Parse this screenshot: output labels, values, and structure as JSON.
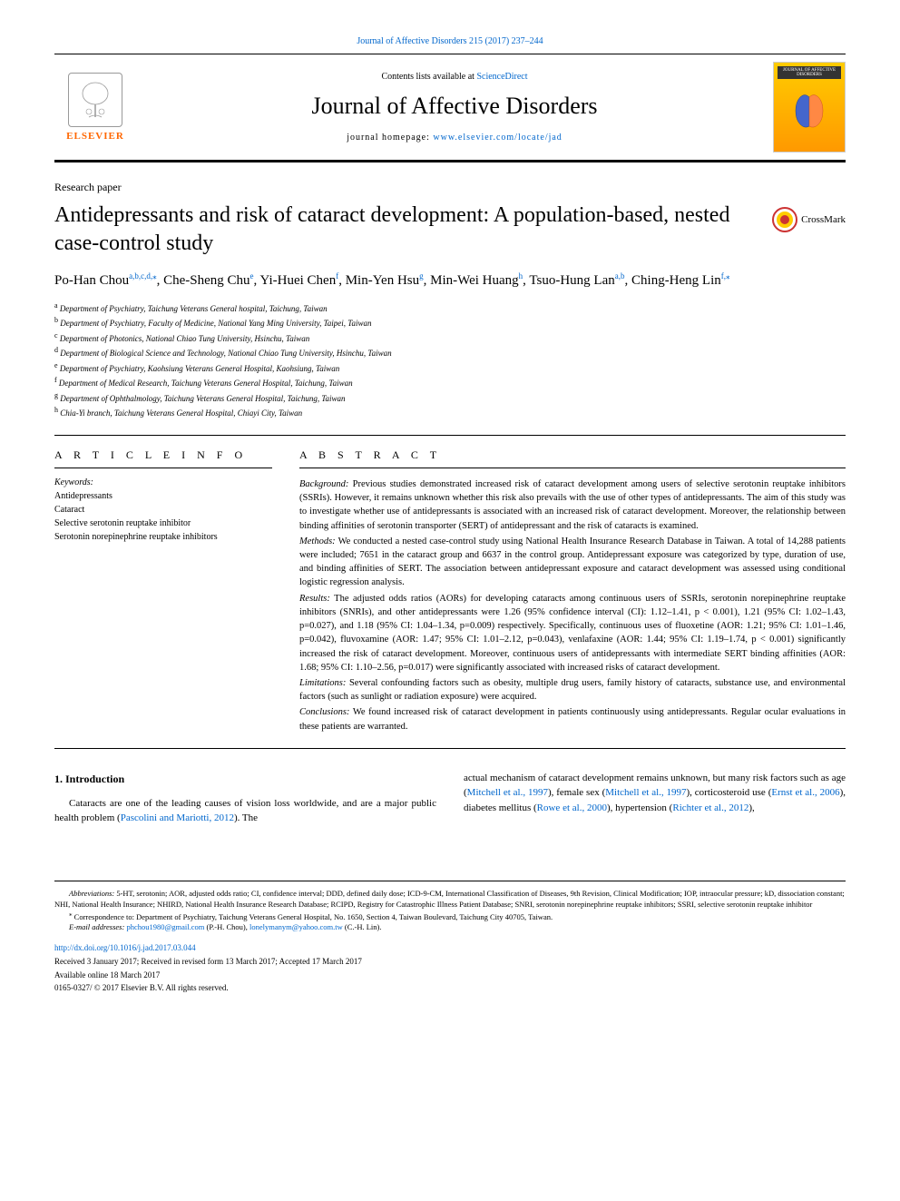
{
  "top_citation": "Journal of Affective Disorders 215 (2017) 237–244",
  "header": {
    "contents_prefix": "Contents lists available at ",
    "contents_link": "ScienceDirect",
    "journal_title": "Journal of Affective Disorders",
    "homepage_prefix": "journal homepage: ",
    "homepage_link": "www.elsevier.com/locate/jad",
    "elsevier_label": "ELSEVIER",
    "cover_label": "JOURNAL OF AFFECTIVE DISORDERS"
  },
  "article_type": "Research paper",
  "title": "Antidepressants and risk of cataract development: A population-based, nested case-control study",
  "crossmark_label": "CrossMark",
  "authors_html": "Po-Han Chou",
  "authors": [
    {
      "name": "Po-Han Chou",
      "sup": "a,b,c,d,⁎"
    },
    {
      "name": "Che-Sheng Chu",
      "sup": "e"
    },
    {
      "name": "Yi-Huei Chen",
      "sup": "f"
    },
    {
      "name": "Min-Yen Hsu",
      "sup": "g"
    },
    {
      "name": "Min-Wei Huang",
      "sup": "h"
    },
    {
      "name": "Tsuo-Hung Lan",
      "sup": "a,b"
    },
    {
      "name": "Ching-Heng Lin",
      "sup": "f,⁎"
    }
  ],
  "affiliations": [
    {
      "sup": "a",
      "text": "Department of Psychiatry, Taichung Veterans General hospital, Taichung, Taiwan"
    },
    {
      "sup": "b",
      "text": "Department of Psychiatry, Faculty of Medicine, National Yang Ming University, Taipei, Taiwan"
    },
    {
      "sup": "c",
      "text": "Department of Photonics, National Chiao Tung University, Hsinchu, Taiwan"
    },
    {
      "sup": "d",
      "text": "Department of Biological Science and Technology, National Chiao Tung University, Hsinchu, Taiwan"
    },
    {
      "sup": "e",
      "text": "Department of Psychiatry, Kaohsiung Veterans General Hospital, Kaohsiung, Taiwan"
    },
    {
      "sup": "f",
      "text": "Department of Medical Research, Taichung Veterans General Hospital, Taichung, Taiwan"
    },
    {
      "sup": "g",
      "text": "Department of Ophthalmology, Taichung Veterans General Hospital, Taichung, Taiwan"
    },
    {
      "sup": "h",
      "text": "Chia-Yi branch, Taichung Veterans General Hospital, Chiayi City, Taiwan"
    }
  ],
  "article_info_header": "A R T I C L E  I N F O",
  "abstract_header": "A B S T R A C T",
  "keywords_label": "Keywords:",
  "keywords": [
    "Antidepressants",
    "Cataract",
    "Selective serotonin reuptake inhibitor",
    "Serotonin norepinephrine reuptake inhibitors"
  ],
  "abstract": {
    "background_label": "Background:",
    "background": "Previous studies demonstrated increased risk of cataract development among users of selective serotonin reuptake inhibitors (SSRIs). However, it remains unknown whether this risk also prevails with the use of other types of antidepressants. The aim of this study was to investigate whether use of antidepressants is associated with an increased risk of cataract development. Moreover, the relationship between binding affinities of serotonin transporter (SERT) of antidepressant and the risk of cataracts is examined.",
    "methods_label": "Methods:",
    "methods": "We conducted a nested case-control study using National Health Insurance Research Database in Taiwan. A total of 14,288 patients were included; 7651 in the cataract group and 6637 in the control group. Antidepressant exposure was categorized by type, duration of use, and binding affinities of SERT. The association between antidepressant exposure and cataract development was assessed using conditional logistic regression analysis.",
    "results_label": "Results:",
    "results": "The adjusted odds ratios (AORs) for developing cataracts among continuous users of SSRIs, serotonin norepinephrine reuptake inhibitors (SNRIs), and other antidepressants were 1.26 (95% confidence interval (CI): 1.12–1.41, p < 0.001), 1.21 (95% CI: 1.02–1.43, p=0.027), and 1.18 (95% CI: 1.04–1.34, p=0.009) respectively. Specifically, continuous uses of fluoxetine (AOR: 1.21; 95% CI: 1.01–1.46, p=0.042), fluvoxamine (AOR: 1.47; 95% CI: 1.01–2.12, p=0.043), venlafaxine (AOR: 1.44; 95% CI: 1.19–1.74, p < 0.001) significantly increased the risk of cataract development. Moreover, continuous users of antidepressants with intermediate SERT binding affinities (AOR: 1.68; 95% CI: 1.10–2.56, p=0.017) were significantly associated with increased risks of cataract development.",
    "limitations_label": "Limitations:",
    "limitations": "Several confounding factors such as obesity, multiple drug users, family history of cataracts, substance use, and environmental factors (such as sunlight or radiation exposure) were acquired.",
    "conclusions_label": "Conclusions:",
    "conclusions": "We found increased risk of cataract development in patients continuously using antidepressants. Regular ocular evaluations in these patients are warranted."
  },
  "intro": {
    "heading": "1. Introduction",
    "left_para_1": "Cataracts are one of the leading causes of vision loss worldwide, and are a major public health problem (",
    "left_link_1": "Pascolini and Mariotti, 2012",
    "left_para_2": "). The",
    "right_para_1": "actual mechanism of cataract development remains unknown, but many risk factors such as age (",
    "right_link_1": "Mitchell et al., 1997",
    "right_para_2": "), female sex (",
    "right_link_2": "Mitchell et al., 1997",
    "right_para_3": "), corticosteroid use (",
    "right_link_3": "Ernst et al., 2006",
    "right_para_4": "), diabetes mellitus (",
    "right_link_4": "Rowe et al., 2000",
    "right_para_5": "), hypertension (",
    "right_link_5": "Richter et al., 2012",
    "right_para_6": "),"
  },
  "footer": {
    "abbrev_label": "Abbreviations:",
    "abbrev_text": "5-HT, serotonin; AOR, adjusted odds ratio; CI, confidence interval; DDD, defined daily dose; ICD-9-CM, International Classification of Diseases, 9th Revision, Clinical Modification; IOP, intraocular pressure; kD, dissociation constant; NHI, National Health Insurance; NHIRD, National Health Insurance Research Database; RCIPD, Registry for Catastrophic Illness Patient Database; SNRI, serotonin norepinephrine reuptake inhibitors; SSRI, selective serotonin reuptake inhibitor",
    "corr_label": "⁎",
    "corr_text": "Correspondence to: Department of Psychiatry, Taichung Veterans General Hospital, No. 1650, Section 4, Taiwan Boulevard, Taichung City 40705, Taiwan.",
    "email_label": "E-mail addresses:",
    "email_1": "phchou1980@gmail.com",
    "email_1_name": "(P.-H. Chou),",
    "email_2": "lonelymanym@yahoo.com.tw",
    "email_2_name": "(C.-H. Lin).",
    "doi": "http://dx.doi.org/10.1016/j.jad.2017.03.044",
    "received": "Received 3 January 2017; Received in revised form 13 March 2017; Accepted 17 March 2017",
    "available": "Available online 18 March 2017",
    "copyright": "0165-0327/ © 2017 Elsevier B.V. All rights reserved."
  },
  "colors": {
    "link": "#0066cc",
    "elsevier_orange": "#ff6600",
    "cover_gradient_top": "#ffcc00",
    "cover_gradient_bottom": "#ff9900",
    "crossmark_red": "#cc3333",
    "crossmark_yellow": "#ffcc00"
  }
}
